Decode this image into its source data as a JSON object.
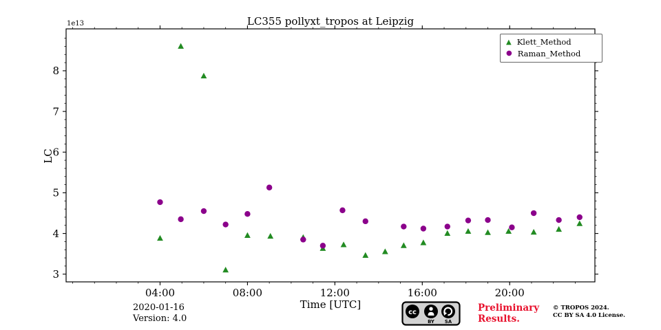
{
  "title": "LC355 pollyxt_tropos at Leipzig",
  "chart_data": {
    "type": "scatter",
    "title": "LC355 pollyxt_tropos at Leipzig",
    "xlabel": "Time [UTC]",
    "ylabel": "LC",
    "y_offset_label": "1e13",
    "y_scale_note": "y values are in units of 1e13",
    "xlim": [
      -0.3,
      23.9
    ],
    "ylim": [
      2.81,
      9.03
    ],
    "x_ticks": [
      {
        "value": 4,
        "label": "04:00"
      },
      {
        "value": 8,
        "label": "08:00"
      },
      {
        "value": 12,
        "label": "12:00"
      },
      {
        "value": 16,
        "label": "16:00"
      },
      {
        "value": 20,
        "label": "20:00"
      }
    ],
    "y_ticks": [
      3,
      4,
      5,
      6,
      7,
      8
    ],
    "legend_position": "upper right",
    "grid": false,
    "series": [
      {
        "name": "Klett_Method",
        "marker": "triangle",
        "color": "#228B22",
        "points": [
          [
            4.0,
            3.88
          ],
          [
            4.95,
            8.6
          ],
          [
            6.0,
            7.87
          ],
          [
            7.0,
            3.1
          ],
          [
            8.0,
            3.95
          ],
          [
            9.05,
            3.93
          ],
          [
            10.55,
            3.9
          ],
          [
            11.45,
            3.63
          ],
          [
            12.4,
            3.72
          ],
          [
            13.4,
            3.46
          ],
          [
            14.3,
            3.55
          ],
          [
            15.15,
            3.7
          ],
          [
            16.05,
            3.77
          ],
          [
            17.15,
            4.0
          ],
          [
            18.1,
            4.05
          ],
          [
            19.0,
            4.02
          ],
          [
            19.95,
            4.05
          ],
          [
            21.1,
            4.03
          ],
          [
            22.25,
            4.1
          ],
          [
            23.2,
            4.24
          ]
        ]
      },
      {
        "name": "Raman_Method",
        "marker": "circle",
        "color": "#8B008B",
        "points": [
          [
            4.0,
            4.77
          ],
          [
            4.95,
            4.35
          ],
          [
            6.0,
            4.55
          ],
          [
            7.0,
            4.22
          ],
          [
            8.0,
            4.48
          ],
          [
            9.0,
            5.13
          ],
          [
            10.55,
            3.85
          ],
          [
            11.45,
            3.7
          ],
          [
            12.35,
            4.57
          ],
          [
            13.4,
            4.3
          ],
          [
            15.15,
            4.17
          ],
          [
            16.05,
            4.12
          ],
          [
            17.15,
            4.17
          ],
          [
            18.1,
            4.32
          ],
          [
            19.0,
            4.33
          ],
          [
            20.1,
            4.15
          ],
          [
            21.1,
            4.5
          ],
          [
            22.25,
            4.33
          ],
          [
            23.2,
            4.4
          ]
        ]
      }
    ]
  },
  "footer": {
    "date": "2020-01-16",
    "version": "Version: 4.0",
    "preliminary_line1": "Preliminary",
    "preliminary_line2": "Results.",
    "preliminary_color": "#e8112d",
    "copyright_line1": "© TROPOS 2024.",
    "copyright_line2": "CC BY SA 4.0 License.",
    "license_badge": {
      "cc": "cc",
      "by": "BY",
      "sa": "SA"
    }
  }
}
